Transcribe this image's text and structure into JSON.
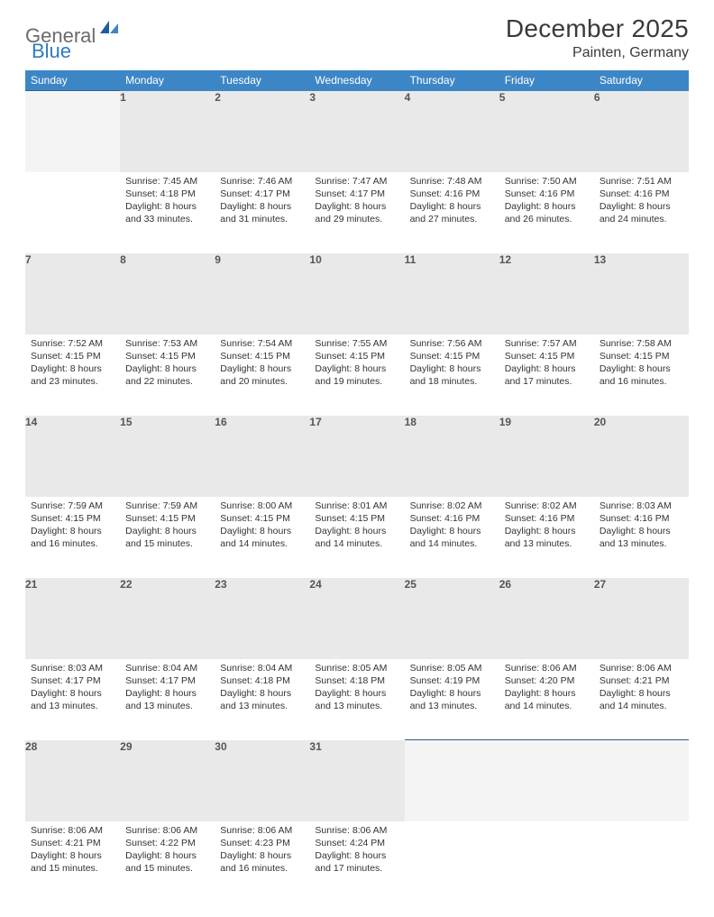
{
  "brand": {
    "name1": "General",
    "name2": "Blue"
  },
  "title": "December 2025",
  "location": "Painten, Germany",
  "colors": {
    "header_bg": "#3d86c6",
    "header_text": "#ffffff",
    "daynum_bg": "#e9e9e9",
    "border": "#2a5f8f",
    "logo_gray": "#6b6b6b",
    "logo_blue": "#2f7abf"
  },
  "weekdays": [
    "Sunday",
    "Monday",
    "Tuesday",
    "Wednesday",
    "Thursday",
    "Friday",
    "Saturday"
  ],
  "weeks": [
    [
      null,
      {
        "n": "1",
        "sr": "7:45 AM",
        "ss": "4:18 PM",
        "dl": "8 hours and 33 minutes."
      },
      {
        "n": "2",
        "sr": "7:46 AM",
        "ss": "4:17 PM",
        "dl": "8 hours and 31 minutes."
      },
      {
        "n": "3",
        "sr": "7:47 AM",
        "ss": "4:17 PM",
        "dl": "8 hours and 29 minutes."
      },
      {
        "n": "4",
        "sr": "7:48 AM",
        "ss": "4:16 PM",
        "dl": "8 hours and 27 minutes."
      },
      {
        "n": "5",
        "sr": "7:50 AM",
        "ss": "4:16 PM",
        "dl": "8 hours and 26 minutes."
      },
      {
        "n": "6",
        "sr": "7:51 AM",
        "ss": "4:16 PM",
        "dl": "8 hours and 24 minutes."
      }
    ],
    [
      {
        "n": "7",
        "sr": "7:52 AM",
        "ss": "4:15 PM",
        "dl": "8 hours and 23 minutes."
      },
      {
        "n": "8",
        "sr": "7:53 AM",
        "ss": "4:15 PM",
        "dl": "8 hours and 22 minutes."
      },
      {
        "n": "9",
        "sr": "7:54 AM",
        "ss": "4:15 PM",
        "dl": "8 hours and 20 minutes."
      },
      {
        "n": "10",
        "sr": "7:55 AM",
        "ss": "4:15 PM",
        "dl": "8 hours and 19 minutes."
      },
      {
        "n": "11",
        "sr": "7:56 AM",
        "ss": "4:15 PM",
        "dl": "8 hours and 18 minutes."
      },
      {
        "n": "12",
        "sr": "7:57 AM",
        "ss": "4:15 PM",
        "dl": "8 hours and 17 minutes."
      },
      {
        "n": "13",
        "sr": "7:58 AM",
        "ss": "4:15 PM",
        "dl": "8 hours and 16 minutes."
      }
    ],
    [
      {
        "n": "14",
        "sr": "7:59 AM",
        "ss": "4:15 PM",
        "dl": "8 hours and 16 minutes."
      },
      {
        "n": "15",
        "sr": "7:59 AM",
        "ss": "4:15 PM",
        "dl": "8 hours and 15 minutes."
      },
      {
        "n": "16",
        "sr": "8:00 AM",
        "ss": "4:15 PM",
        "dl": "8 hours and 14 minutes."
      },
      {
        "n": "17",
        "sr": "8:01 AM",
        "ss": "4:15 PM",
        "dl": "8 hours and 14 minutes."
      },
      {
        "n": "18",
        "sr": "8:02 AM",
        "ss": "4:16 PM",
        "dl": "8 hours and 14 minutes."
      },
      {
        "n": "19",
        "sr": "8:02 AM",
        "ss": "4:16 PM",
        "dl": "8 hours and 13 minutes."
      },
      {
        "n": "20",
        "sr": "8:03 AM",
        "ss": "4:16 PM",
        "dl": "8 hours and 13 minutes."
      }
    ],
    [
      {
        "n": "21",
        "sr": "8:03 AM",
        "ss": "4:17 PM",
        "dl": "8 hours and 13 minutes."
      },
      {
        "n": "22",
        "sr": "8:04 AM",
        "ss": "4:17 PM",
        "dl": "8 hours and 13 minutes."
      },
      {
        "n": "23",
        "sr": "8:04 AM",
        "ss": "4:18 PM",
        "dl": "8 hours and 13 minutes."
      },
      {
        "n": "24",
        "sr": "8:05 AM",
        "ss": "4:18 PM",
        "dl": "8 hours and 13 minutes."
      },
      {
        "n": "25",
        "sr": "8:05 AM",
        "ss": "4:19 PM",
        "dl": "8 hours and 13 minutes."
      },
      {
        "n": "26",
        "sr": "8:06 AM",
        "ss": "4:20 PM",
        "dl": "8 hours and 14 minutes."
      },
      {
        "n": "27",
        "sr": "8:06 AM",
        "ss": "4:21 PM",
        "dl": "8 hours and 14 minutes."
      }
    ],
    [
      {
        "n": "28",
        "sr": "8:06 AM",
        "ss": "4:21 PM",
        "dl": "8 hours and 15 minutes."
      },
      {
        "n": "29",
        "sr": "8:06 AM",
        "ss": "4:22 PM",
        "dl": "8 hours and 15 minutes."
      },
      {
        "n": "30",
        "sr": "8:06 AM",
        "ss": "4:23 PM",
        "dl": "8 hours and 16 minutes."
      },
      {
        "n": "31",
        "sr": "8:06 AM",
        "ss": "4:24 PM",
        "dl": "8 hours and 17 minutes."
      },
      null,
      null,
      null
    ]
  ],
  "labels": {
    "sunrise": "Sunrise:",
    "sunset": "Sunset:",
    "daylight": "Daylight:"
  }
}
